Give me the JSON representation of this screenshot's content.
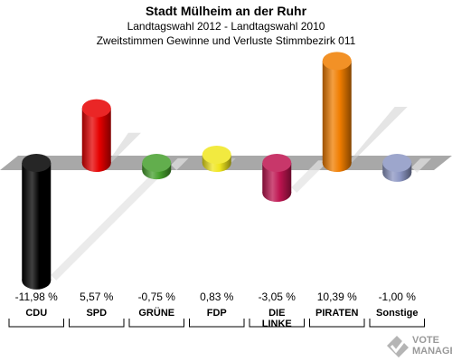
{
  "title": "Stadt Mülheim an der Ruhr",
  "subtitle_1": "Landtagswahl 2012 - Landtagswahl 2010",
  "subtitle_2": "Zweitstimmen Gewinne und Verluste Stimmbezirk 011",
  "watermark": {
    "line1": "VOTE",
    "line2": "MANAGER"
  },
  "chart_data": {
    "type": "bar",
    "categories": [
      "CDU",
      "SPD",
      "GRÜNE",
      "FDP",
      "DIE LINKE",
      "PIRATEN",
      "Sonstige"
    ],
    "values": [
      -11.98,
      5.57,
      -0.75,
      0.83,
      -3.05,
      10.39,
      -1.0
    ],
    "value_labels": [
      "-11,98 %",
      "5,57 %",
      "-0,75 %",
      "0,83 %",
      "-3,05 %",
      "10,39 %",
      "-1,00 %"
    ],
    "colors": [
      "#000000",
      "#e60000",
      "#46a02d",
      "#f0e61e",
      "#be1450",
      "#f07d00",
      "#8c96c3"
    ],
    "ylim": [
      -12,
      11
    ]
  }
}
